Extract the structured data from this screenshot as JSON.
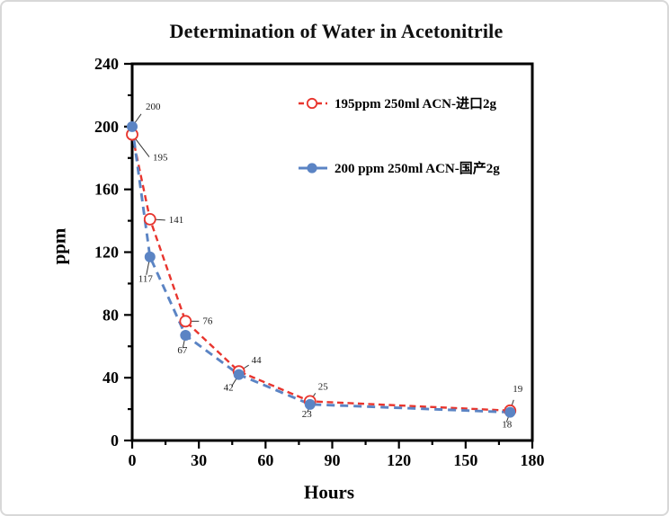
{
  "window": {
    "background": "#ffffff",
    "frame_border_color": "#d8d8d8"
  },
  "chart_data": {
    "type": "line",
    "title": "Determination of Water in Acetonitrile",
    "xlabel": "Hours",
    "ylabel": "ppm",
    "xlim": [
      0,
      180
    ],
    "ylim": [
      0,
      240
    ],
    "x_major_ticks": [
      0,
      30,
      60,
      90,
      120,
      150,
      180
    ],
    "x_minor_step": 15,
    "y_major_ticks": [
      0,
      40,
      80,
      120,
      160,
      200,
      240
    ],
    "y_minor_step": 20,
    "grid": false,
    "plot_frame": "full-box",
    "tick_direction": "out",
    "legend_position": "upper-right-inside",
    "axis_color": "#000000",
    "point_label_color": "#1a1a1a",
    "leader_line_color": "#333333",
    "series": [
      {
        "name": "195ppm  250ml ACN-进口2g",
        "color": "#e8352e",
        "marker": "open-circle",
        "line_style": "dashed",
        "x": [
          0,
          8,
          24,
          48,
          80,
          170
        ],
        "y": [
          195,
          141,
          76,
          44,
          25,
          19
        ],
        "point_labels": [
          "195",
          "141",
          "76",
          "44",
          "25",
          "19"
        ],
        "label_offsets": [
          [
            23,
            29
          ],
          [
            21,
            4
          ],
          [
            19,
            3
          ],
          [
            14,
            -9
          ],
          [
            9,
            -13
          ],
          [
            3,
            -21
          ]
        ],
        "leader_offsets": [
          [
            19,
            25
          ],
          [
            17,
            1
          ],
          [
            15,
            0
          ],
          [
            11,
            -7
          ],
          [
            6,
            -9
          ],
          [
            4,
            -12
          ]
        ]
      },
      {
        "name": "200 ppm 250ml ACN-国产2g",
        "color": "#5b84c4",
        "marker": "filled-circle",
        "line_style": "dashed",
        "x": [
          0,
          8,
          24,
          48,
          80,
          170
        ],
        "y": [
          200,
          117,
          67,
          42,
          23,
          18
        ],
        "point_labels": [
          "200",
          "117",
          "67",
          "42",
          "23",
          "18"
        ],
        "label_offsets": [
          [
            15,
            -19
          ],
          [
            -13,
            28
          ],
          [
            -9,
            20
          ],
          [
            -17,
            18
          ],
          [
            -9,
            14
          ],
          [
            -9,
            17
          ]
        ],
        "leader_offsets": [
          [
            10,
            -14
          ],
          [
            -4,
            20
          ],
          [
            -3,
            14
          ],
          [
            -8,
            13
          ],
          [
            -3,
            9
          ],
          [
            -4,
            11
          ]
        ]
      }
    ]
  }
}
